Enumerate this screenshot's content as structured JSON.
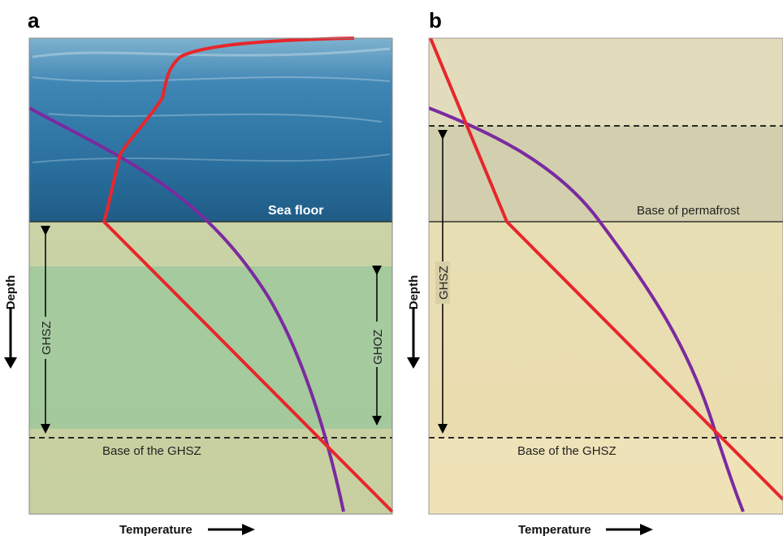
{
  "panels": [
    {
      "letter": "a",
      "boundary_label": "Sea floor",
      "zone_labels": [
        "GHSZ",
        "GHOZ"
      ],
      "base_label": "Base of the GHSZ"
    },
    {
      "letter": "b",
      "boundary_label": "Base of permafrost",
      "zone_labels": [
        "GHSZ"
      ],
      "base_label": "Base of the GHSZ"
    }
  ],
  "axes": {
    "x_label": "Temperature",
    "y_label": "Depth"
  },
  "colors": {
    "temperature_curve": "#e8262b",
    "stability_curve": "#7b2aa0",
    "water": "#2c6f9a",
    "sediment_a": "#b8c89a",
    "sediment_b": "#e9dcb0",
    "permafrost": "#cfc9a8",
    "ghoz_band": "#8fc49a"
  }
}
